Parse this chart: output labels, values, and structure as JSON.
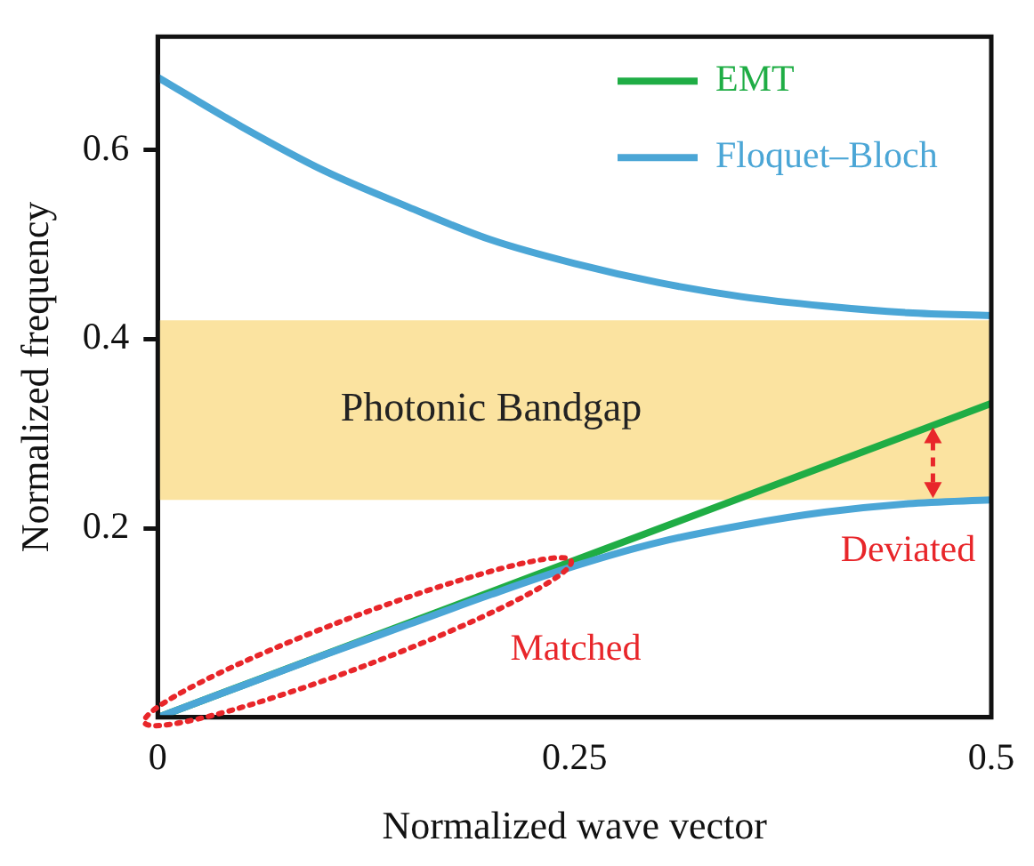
{
  "chart_data": {
    "type": "line",
    "xlabel": "Normalized wave vector",
    "ylabel": "Normalized frequency",
    "xlim": [
      0,
      0.5
    ],
    "xticks": [
      0,
      0.25,
      0.5
    ],
    "ylim": [
      0,
      0.72
    ],
    "yticks": [
      0.2,
      0.4,
      0.6
    ],
    "grid": false,
    "legend": "top right",
    "marker": "none",
    "line_style": "solid",
    "series": [
      {
        "name": "EMT",
        "color": "#1fad45",
        "x": [
          0,
          0.5
        ],
        "values": [
          0,
          0.332
        ]
      },
      {
        "name": "Floquet–Bloch",
        "color": "#4ba6d6",
        "x": [
          0,
          0.05,
          0.1,
          0.15,
          0.2,
          0.25,
          0.3,
          0.35,
          0.4,
          0.45,
          0.5
        ],
        "values": [
          0.677,
          0.625,
          0.578,
          0.54,
          0.505,
          0.48,
          0.46,
          0.445,
          0.435,
          0.428,
          0.425
        ]
      },
      {
        "color": "#4ba6d6",
        "x": [
          0,
          0.05,
          0.1,
          0.15,
          0.2,
          0.25,
          0.3,
          0.35,
          0.4,
          0.45,
          0.5
        ],
        "values": [
          0,
          0.033,
          0.066,
          0.098,
          0.13,
          0.16,
          0.185,
          0.203,
          0.217,
          0.226,
          0.23
        ]
      }
    ],
    "bands": [
      {
        "axis": "y",
        "from": 0.23,
        "to": 0.42,
        "label": "Photonic Bandgap",
        "color": "#fbe3a0"
      }
    ],
    "annotations": [
      {
        "text": "Matched",
        "x": 0.24,
        "y": 0.16
      },
      {
        "text": "Deviated",
        "x": 0.465,
        "y": 0.23
      }
    ]
  }
}
